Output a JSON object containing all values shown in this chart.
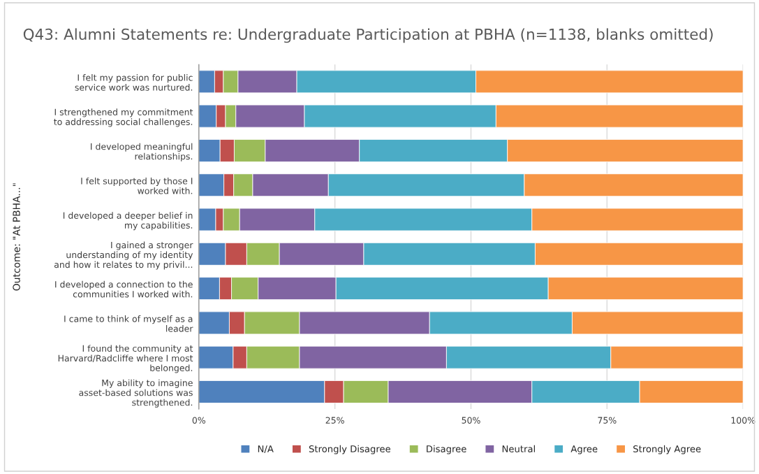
{
  "chart_data": {
    "type": "bar",
    "orientation": "horizontal",
    "stacked": true,
    "title": "Q43: Alumni Statements re: Undergraduate Participation at PBHA (n=1138, blanks omitted)",
    "ylabel": "Outcome: \"At PBHA...\"",
    "categories": [
      "I felt my passion for public\nservice work was nurtured.",
      "I strengthened my commitment\nto addressing social challenges.",
      "I developed meaningful\nrelationships.",
      "I felt supported by those I\nworked with.",
      "I developed a deeper belief in\nmy capabilities.",
      "I gained a stronger\nunderstanding of my identity\nand how it relates to my privil...",
      "I developed a connection to the\ncommunities I worked with.",
      "I came to think of myself as a\nleader",
      "I found the community at\nHarvard/Radcliffe where I most\nbelonged.",
      "My ability to imagine\nasset-based solutions was\nstrengthened."
    ],
    "series": [
      {
        "name": "N/A",
        "color": "#4f81bd",
        "values": [
          2.9,
          3.2,
          3.9,
          4.6,
          3.1,
          4.9,
          3.8,
          5.6,
          6.3,
          23.1
        ]
      },
      {
        "name": "Strongly Disagree",
        "color": "#c0504d",
        "values": [
          1.6,
          1.7,
          2.6,
          1.8,
          1.4,
          3.9,
          2.2,
          2.8,
          2.5,
          3.5
        ]
      },
      {
        "name": "Disagree",
        "color": "#9bbb59",
        "values": [
          2.7,
          1.9,
          5.7,
          3.5,
          3.0,
          6.0,
          4.9,
          10.1,
          9.7,
          8.2
        ]
      },
      {
        "name": "Neutral",
        "color": "#8064a2",
        "values": [
          10.8,
          12.6,
          17.3,
          13.9,
          13.8,
          15.5,
          14.3,
          23.9,
          27.0,
          26.4
        ]
      },
      {
        "name": "Agree",
        "color": "#4bacc6",
        "values": [
          32.9,
          35.2,
          27.2,
          36.0,
          39.9,
          31.5,
          39.0,
          26.2,
          30.2,
          19.8
        ]
      },
      {
        "name": "Strongly Agree",
        "color": "#f79646",
        "values": [
          49.1,
          45.4,
          43.3,
          40.2,
          38.8,
          38.2,
          35.8,
          31.4,
          24.3,
          19.0
        ]
      }
    ],
    "xlim": [
      0,
      100
    ],
    "xticks": [
      {
        "value": 0,
        "label": "0%"
      },
      {
        "value": 25,
        "label": "25%"
      },
      {
        "value": 50,
        "label": "50%"
      },
      {
        "value": 75,
        "label": "75%"
      },
      {
        "value": 100,
        "label": "100%"
      }
    ],
    "grid": "x",
    "legend": "bottom"
  }
}
